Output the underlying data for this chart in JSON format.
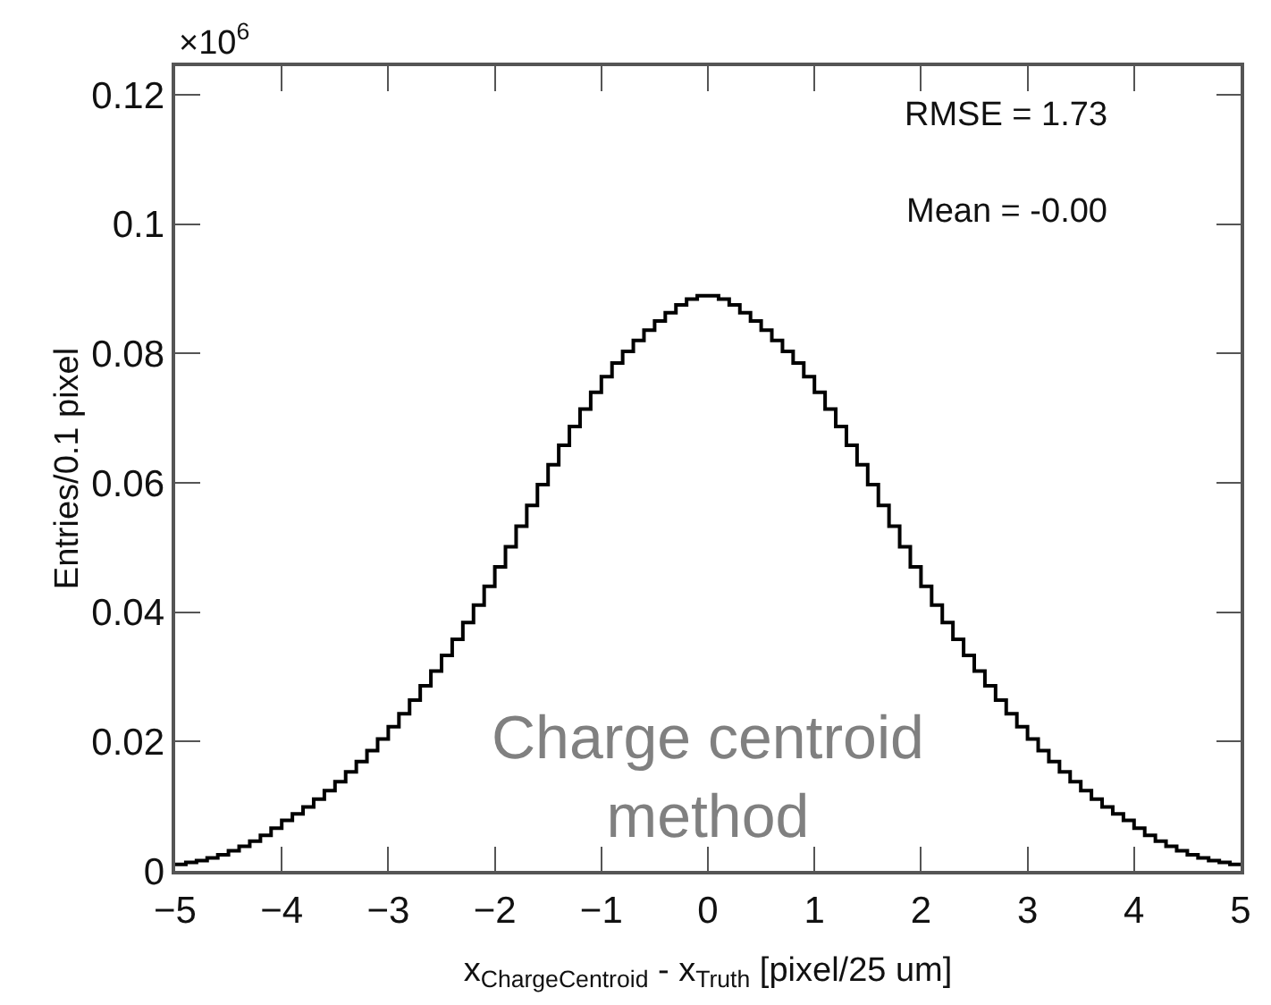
{
  "chart_data": {
    "type": "histogram",
    "xlabel": "x$_{ChargeCentroid}$ - x$_{Truth}$ [pixel/25 um]",
    "ylabel": "Entries/0.1 pixel",
    "bins": [
      -5.0,
      -4.9,
      -4.8,
      -4.7,
      -4.6,
      -4.5,
      -4.4,
      -4.3,
      -4.2,
      -4.1,
      -4.0,
      -3.9,
      -3.8,
      -3.7,
      -3.6,
      -3.5,
      -3.4,
      -3.3,
      -3.2,
      -3.1,
      -3.0,
      -2.9,
      -2.8,
      -2.7,
      -2.6,
      -2.5,
      -2.4,
      -2.3,
      -2.2,
      -2.1,
      -2.0,
      -1.9,
      -1.8,
      -1.7,
      -1.6,
      -1.5,
      -1.4,
      -1.3,
      -1.2,
      -1.1,
      -1.0,
      -0.9,
      -0.8,
      -0.7,
      -0.6,
      -0.5,
      -0.4,
      -0.3,
      -0.2,
      -0.1,
      0.0,
      0.1,
      0.2,
      0.3,
      0.4,
      0.5,
      0.6,
      0.7,
      0.8,
      0.9,
      1.0,
      1.1,
      1.2,
      1.3,
      1.4,
      1.5,
      1.6,
      1.7,
      1.8,
      1.9,
      2.0,
      2.1,
      2.2,
      2.3,
      2.4,
      2.5,
      2.6,
      2.7,
      2.8,
      2.9,
      3.0,
      3.1,
      3.2,
      3.3,
      3.4,
      3.5,
      3.6,
      3.7,
      3.8,
      3.9,
      4.0,
      4.1,
      4.2,
      4.3,
      4.4,
      4.5,
      4.6,
      4.7,
      4.8,
      4.9,
      5.0
    ],
    "values": [
      0.001,
      0.0013,
      0.0016,
      0.002,
      0.0025,
      0.0031,
      0.0038,
      0.0046,
      0.0055,
      0.0066,
      0.0078,
      0.0088,
      0.0099,
      0.0111,
      0.0124,
      0.0138,
      0.0153,
      0.0169,
      0.0186,
      0.0204,
      0.0223,
      0.0243,
      0.0264,
      0.0286,
      0.0309,
      0.0333,
      0.0358,
      0.0384,
      0.0411,
      0.044,
      0.047,
      0.0501,
      0.0533,
      0.0565,
      0.0597,
      0.0628,
      0.0658,
      0.0687,
      0.0714,
      0.074,
      0.0764,
      0.0785,
      0.0803,
      0.082,
      0.0836,
      0.085,
      0.0863,
      0.0875,
      0.0884,
      0.0889,
      0.0889,
      0.0884,
      0.0875,
      0.0863,
      0.085,
      0.0836,
      0.082,
      0.0803,
      0.0785,
      0.0764,
      0.074,
      0.0714,
      0.0687,
      0.0658,
      0.0628,
      0.0597,
      0.0565,
      0.0533,
      0.0501,
      0.047,
      0.044,
      0.0411,
      0.0384,
      0.0358,
      0.0333,
      0.0309,
      0.0286,
      0.0264,
      0.0243,
      0.0223,
      0.0204,
      0.0186,
      0.0169,
      0.0153,
      0.0138,
      0.0124,
      0.0111,
      0.0099,
      0.0088,
      0.0078,
      0.0066,
      0.0055,
      0.0046,
      0.0038,
      0.0031,
      0.0025,
      0.002,
      0.0016,
      0.0013,
      0.001
    ],
    "color": "#000000",
    "xlim": [
      -5,
      5
    ],
    "xticks": [
      {
        "value": -5,
        "label": "−5"
      },
      {
        "value": -4,
        "label": "−4"
      },
      {
        "value": -3,
        "label": "−3"
      },
      {
        "value": -2,
        "label": "−2"
      },
      {
        "value": -1,
        "label": "−1"
      },
      0,
      1,
      2,
      3,
      4,
      5
    ],
    "ylim": [
      0,
      0.1244
    ],
    "yticks": [
      0,
      0.02,
      0.04,
      0.06,
      0.08,
      0.1,
      0.12
    ],
    "annotations": [
      "×10$^{6}$",
      "RMSE = 1.73",
      "Mean = -0.00",
      "Charge centroid\nmethod"
    ]
  }
}
